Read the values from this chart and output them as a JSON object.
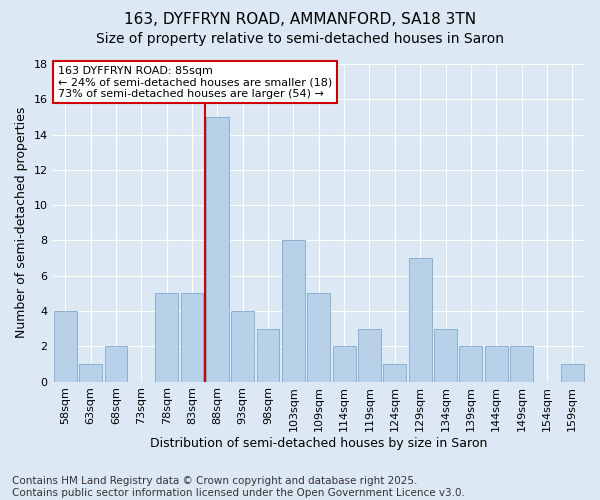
{
  "title": "163, DYFFRYN ROAD, AMMANFORD, SA18 3TN",
  "subtitle": "Size of property relative to semi-detached houses in Saron",
  "xlabel": "Distribution of semi-detached houses by size in Saron",
  "ylabel": "Number of semi-detached properties",
  "footer": "Contains HM Land Registry data © Crown copyright and database right 2025.\nContains public sector information licensed under the Open Government Licence v3.0.",
  "categories": [
    "58sqm",
    "63sqm",
    "68sqm",
    "73sqm",
    "78sqm",
    "83sqm",
    "88sqm",
    "93sqm",
    "98sqm",
    "103sqm",
    "109sqm",
    "114sqm",
    "119sqm",
    "124sqm",
    "129sqm",
    "134sqm",
    "139sqm",
    "144sqm",
    "149sqm",
    "154sqm",
    "159sqm"
  ],
  "values": [
    4,
    1,
    2,
    0,
    5,
    5,
    15,
    4,
    3,
    8,
    5,
    2,
    3,
    1,
    7,
    3,
    2,
    2,
    2,
    0,
    1
  ],
  "bar_color": "#b8d0e8",
  "bar_edge_color": "#8ab0d0",
  "vline_x": 5.5,
  "vline_color": "#cc0000",
  "annotation_text_line1": "163 DYFFRYN ROAD: 85sqm",
  "annotation_text_line2": "← 24% of semi-detached houses are smaller (18)",
  "annotation_text_line3": "73% of semi-detached houses are larger (54) →",
  "annotation_box_color": "#cc0000",
  "ylim": [
    0,
    18
  ],
  "yticks": [
    0,
    2,
    4,
    6,
    8,
    10,
    12,
    14,
    16,
    18
  ],
  "background_color": "#dce9f5",
  "plot_background_color": "#dce9f5",
  "title_fontsize": 11,
  "subtitle_fontsize": 10,
  "axis_label_fontsize": 9,
  "tick_fontsize": 8,
  "footer_fontsize": 7.5,
  "annotation_fontsize": 8
}
